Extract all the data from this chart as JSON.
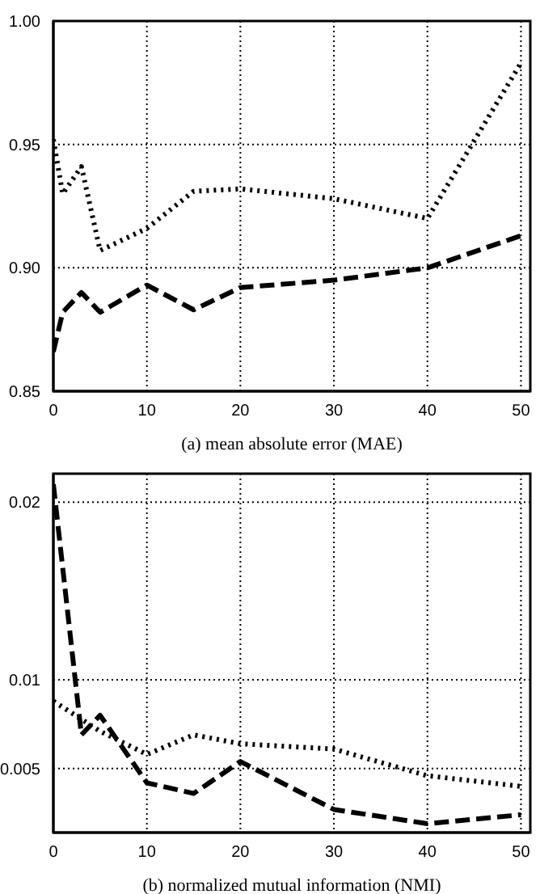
{
  "chart_data": [
    {
      "type": "line",
      "xlabel": "(a) mean absolute error (MAE)",
      "xlim": [
        0,
        51
      ],
      "xticks": [
        0,
        10,
        20,
        30,
        40,
        50
      ],
      "ylim": [
        0.85,
        1.0
      ],
      "yticks": [
        {
          "value": 0.85,
          "label": "0.85"
        },
        {
          "value": 0.9,
          "label": "0.90"
        },
        {
          "value": 0.95,
          "label": "0.95"
        },
        {
          "value": 1.0,
          "label": "1.00"
        }
      ],
      "grid": true,
      "legend": false,
      "marker": "none",
      "series": [
        {
          "color": "#000000",
          "line_style": "dotted",
          "x": [
            0,
            1,
            3,
            5,
            10,
            15,
            20,
            30,
            40,
            50
          ],
          "values": [
            0.952,
            0.93,
            0.941,
            0.907,
            0.916,
            0.931,
            0.932,
            0.928,
            0.92,
            0.983
          ]
        },
        {
          "color": "#000000",
          "line_style": "dashed",
          "x": [
            0,
            1,
            3,
            5,
            10,
            15,
            20,
            30,
            40,
            50
          ],
          "values": [
            0.866,
            0.882,
            0.89,
            0.882,
            0.893,
            0.883,
            0.892,
            0.895,
            0.9,
            0.913
          ]
        }
      ]
    },
    {
      "type": "line",
      "xlabel": "(b) normalized mutual information (NMI)",
      "xlim": [
        0,
        51
      ],
      "xticks": [
        0,
        10,
        20,
        30,
        40,
        50
      ],
      "ylim": [
        0.0014,
        0.0216
      ],
      "yticks": [
        0.005,
        0.01,
        0.02
      ],
      "grid": true,
      "legend": false,
      "marker": "none",
      "series": [
        {
          "color": "#000000",
          "line_style": "dotted",
          "x": [
            0,
            5,
            10,
            15,
            20,
            30,
            40,
            50
          ],
          "values": [
            0.0088,
            0.0071,
            0.0058,
            0.0069,
            0.0064,
            0.0061,
            0.0046,
            0.004
          ]
        },
        {
          "color": "#000000",
          "line_style": "dashed",
          "x": [
            0,
            3,
            5,
            10,
            15,
            20,
            30,
            40,
            50
          ],
          "values": [
            0.021,
            0.0069,
            0.008,
            0.0042,
            0.0036,
            0.0054,
            0.0027,
            0.0019,
            0.0024
          ]
        }
      ]
    }
  ]
}
